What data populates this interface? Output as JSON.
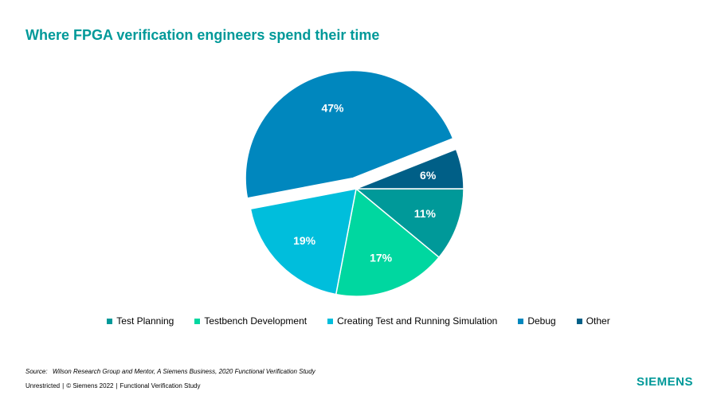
{
  "title": "Where FPGA verification engineers spend their time",
  "chart_data": {
    "type": "pie",
    "title": "Where FPGA verification engineers spend their time",
    "unit": "%",
    "exploded_slice": "Debug",
    "slices": [
      {
        "name": "Test Planning",
        "value": 11,
        "label": "11%",
        "color": "#009999"
      },
      {
        "name": "Testbench Development",
        "value": 17,
        "label": "17%",
        "color": "#00D7A0"
      },
      {
        "name": "Creating Test and Running Simulation",
        "value": 19,
        "label": "19%",
        "color": "#00BEDC"
      },
      {
        "name": "Debug",
        "value": 47,
        "label": "47%",
        "color": "#0087BE"
      },
      {
        "name": "Other",
        "value": 6,
        "label": "6%",
        "color": "#005F87"
      }
    ]
  },
  "source": {
    "label": "Source:",
    "text": "Wilson Research Group and Mentor,  A Siemens Business, 2020 Functional Verification Study"
  },
  "footer": {
    "classification": "Unrestricted",
    "copyright": "© Siemens 2022",
    "study": "Functional Verification Study"
  },
  "brand": "SIEMENS"
}
